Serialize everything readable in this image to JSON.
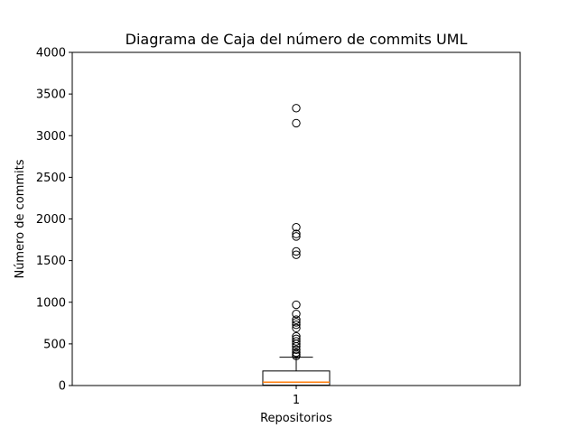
{
  "chart_data": {
    "type": "box",
    "title": "Diagrama de Caja del número de commits UML",
    "xlabel": "Repositorios",
    "ylabel": "Número de commits",
    "categories": [
      "1"
    ],
    "ylim": [
      0,
      4000
    ],
    "yticks": [
      "0",
      "500",
      "1000",
      "1500",
      "2000",
      "2500",
      "3000",
      "3500",
      "4000"
    ],
    "ytick_values": [
      0,
      500,
      1000,
      1500,
      2000,
      2500,
      3000,
      3500,
      4000
    ],
    "grid": false,
    "legend": "none",
    "series": [
      {
        "whisker_low": 0,
        "q1": 5,
        "median": 40,
        "q3": 175,
        "whisker_high": 340,
        "outliers": [
          355,
          375,
          395,
          430,
          470,
          500,
          530,
          560,
          590,
          690,
          730,
          760,
          790,
          860,
          970,
          1570,
          1610,
          1790,
          1820,
          1900,
          3150,
          3330
        ]
      }
    ],
    "colors": {
      "box": "#000000",
      "median": "#ff7f0e",
      "outlier": "#000000"
    }
  }
}
